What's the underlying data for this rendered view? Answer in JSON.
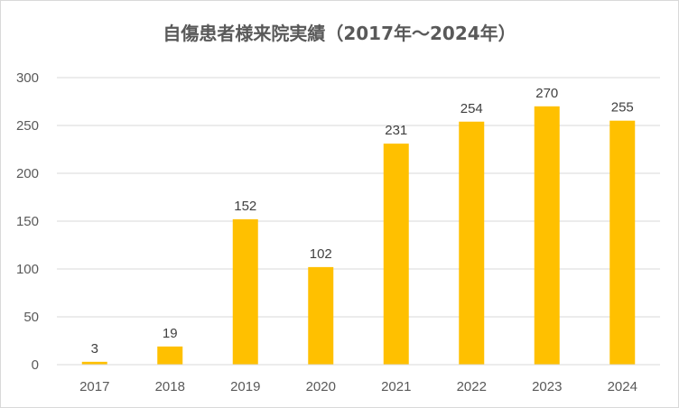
{
  "chart_data": {
    "type": "bar",
    "title": "自傷患者様来院実績（2017年～2024年）",
    "categories": [
      "2017",
      "2018",
      "2019",
      "2020",
      "2021",
      "2022",
      "2023",
      "2024"
    ],
    "values": [
      3,
      19,
      152,
      102,
      231,
      254,
      270,
      255
    ],
    "data_labels": [
      "3",
      "19",
      "152",
      "102",
      "231",
      "254",
      "270",
      "255"
    ],
    "y_ticks": [
      0,
      50,
      100,
      150,
      200,
      250,
      300
    ],
    "ylim": [
      0,
      300
    ],
    "bar_color": "#FFC000",
    "gridlines": true,
    "legend": "none"
  }
}
